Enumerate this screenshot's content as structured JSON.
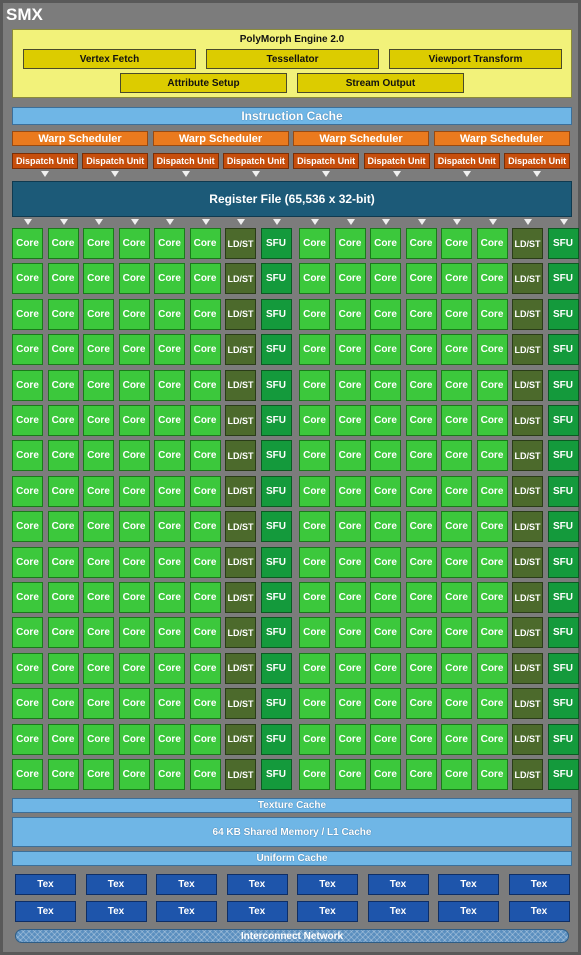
{
  "smx": {
    "title": "SMX"
  },
  "polymorph": {
    "title": "PolyMorph Engine 2.0",
    "row1": [
      "Vertex Fetch",
      "Tessellator",
      "Viewport Transform"
    ],
    "row2": [
      "Attribute Setup",
      "Stream Output"
    ]
  },
  "instruction_cache": "Instruction Cache",
  "warp_schedulers": [
    "Warp Scheduler",
    "Warp Scheduler",
    "Warp Scheduler",
    "Warp Scheduler"
  ],
  "dispatch_units": [
    "Dispatch Unit",
    "Dispatch Unit",
    "Dispatch Unit",
    "Dispatch Unit",
    "Dispatch Unit",
    "Dispatch Unit",
    "Dispatch Unit",
    "Dispatch Unit"
  ],
  "register_file": "Register File (65,536 x 32-bit)",
  "execution_grid": {
    "rows": 16,
    "half_pattern": [
      "Core",
      "Core",
      "Core",
      "Core",
      "Core",
      "Core",
      "LD/ST",
      "SFU"
    ],
    "halves": 2
  },
  "texture_cache": "Texture Cache",
  "shared_memory": "64 KB Shared Memory / L1 Cache",
  "uniform_cache": "Uniform Cache",
  "tex_units": {
    "label": "Tex",
    "rows": 2,
    "cols": 8
  },
  "interconnect": "Interconnect Network",
  "colors": {
    "background": "#7c7c7c",
    "polymorph": "#f2f27a",
    "polymorph_unit": "#dccc00",
    "cache": "#6fb6e6",
    "warp_scheduler": "#ea7a1e",
    "dispatch_unit": "#c64e0c",
    "register_file": "#1c5a78",
    "core": "#3cc83c",
    "ldst": "#4c6a2c",
    "sfu": "#149a3c",
    "tex": "#1e55ab"
  }
}
